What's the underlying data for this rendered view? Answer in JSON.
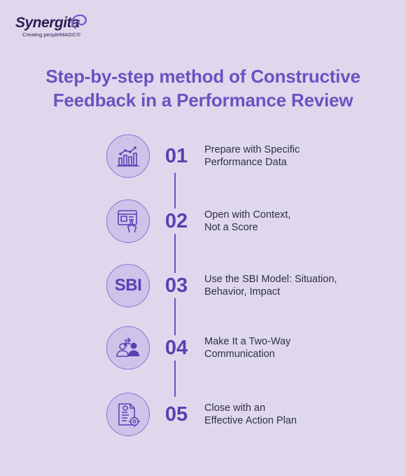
{
  "brand": {
    "name": "Synergita",
    "tagline": "Creating peopleMAGIC®"
  },
  "title": {
    "line1": "Step-by-step method of Constructive",
    "line2": "Feedback in a Performance Review"
  },
  "colors": {
    "background": "#dfd8ec",
    "accent": "#6b52c1",
    "circle_fill": "#cfc3ea",
    "text": "#2e2f44"
  },
  "steps": [
    {
      "number": "01",
      "icon": "bar-chart-icon",
      "line1": "Prepare with Specific",
      "line2": "Performance Data"
    },
    {
      "number": "02",
      "icon": "document-pointer-icon",
      "line1": "Open with Context,",
      "line2": "Not a Score"
    },
    {
      "number": "03",
      "icon": "sbi-text-icon",
      "icon_text": "SBI",
      "line1": "Use the SBI Model: Situation,",
      "line2": "Behavior, Impact"
    },
    {
      "number": "04",
      "icon": "two-way-people-icon",
      "line1": "Make It a Two-Way",
      "line2": "Communication"
    },
    {
      "number": "05",
      "icon": "action-plan-icon",
      "line1": "Close with an",
      "line2": "Effective Action Plan"
    }
  ]
}
